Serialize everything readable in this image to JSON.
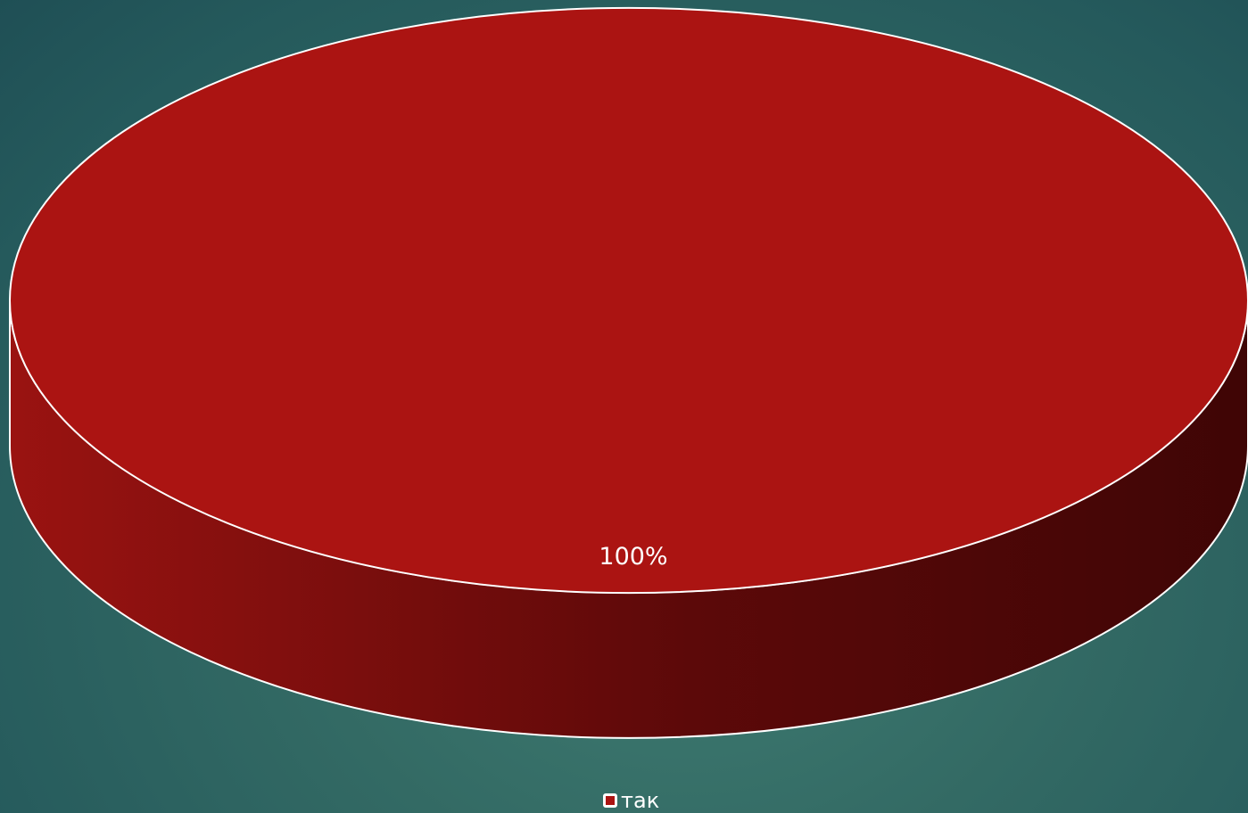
{
  "chart_data": {
    "type": "pie",
    "style": "3d",
    "legend_position": "bottom",
    "categories": [
      "так"
    ],
    "values": [
      100
    ],
    "data_labels": [
      "100%"
    ],
    "colors": [
      "#ab1412"
    ],
    "side_colors": {
      "light": "#9a1311",
      "dark": "#3f0505"
    },
    "edge_color": "#ffffff"
  }
}
